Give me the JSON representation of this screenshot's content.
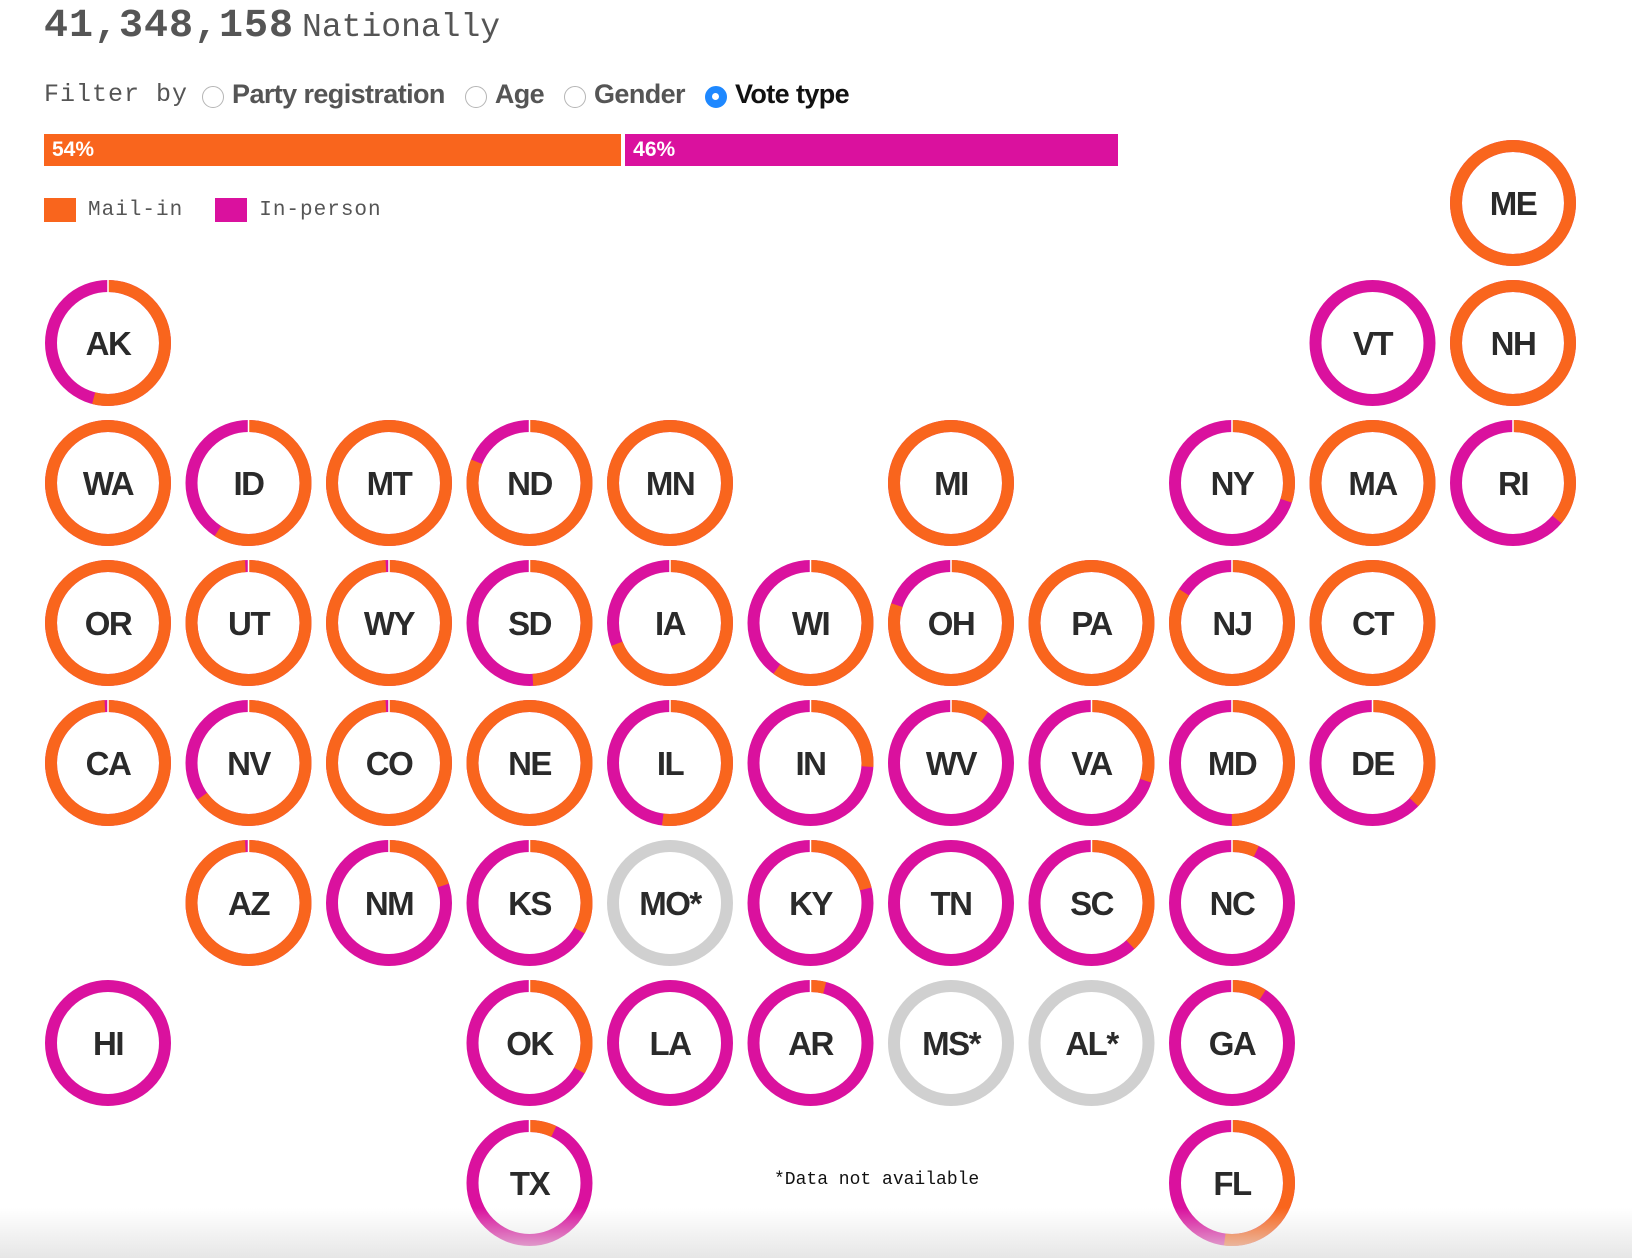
{
  "header": {
    "total": "41,348,158",
    "total_label": "Nationally"
  },
  "filter": {
    "label": "Filter by",
    "options": [
      {
        "label": "Party registration",
        "selected": false
      },
      {
        "label": "Age",
        "selected": false
      },
      {
        "label": "Gender",
        "selected": false
      },
      {
        "label": "Vote type",
        "selected": true
      }
    ]
  },
  "colors": {
    "mail_in": "#f9651d",
    "in_person": "#da119e",
    "unavailable": "#d0d0d0",
    "state_text": "#2a2a2a"
  },
  "national_bar": {
    "mail_in_pct": 54,
    "in_person_pct": 46,
    "mail_in_label": "54%",
    "in_person_label": "46%"
  },
  "legend": {
    "mail_in": "Mail-in",
    "in_person": "In-person"
  },
  "footnote": "*Data not available",
  "chart_data": {
    "type": "tile-map-donut",
    "series": [
      {
        "name": "Mail-in"
      },
      {
        "name": "In-person"
      }
    ],
    "states": [
      {
        "abbr": "ME",
        "col": 10,
        "row": 0,
        "mail_in": 1.0
      },
      {
        "abbr": "AK",
        "col": 0,
        "row": 1,
        "mail_in": 0.54
      },
      {
        "abbr": "VT",
        "col": 9,
        "row": 1,
        "mail_in": 0.0
      },
      {
        "abbr": "NH",
        "col": 10,
        "row": 1,
        "mail_in": 1.0
      },
      {
        "abbr": "WA",
        "col": 0,
        "row": 2,
        "mail_in": 1.0
      },
      {
        "abbr": "ID",
        "col": 1,
        "row": 2,
        "mail_in": 0.59
      },
      {
        "abbr": "MT",
        "col": 2,
        "row": 2,
        "mail_in": 1.0
      },
      {
        "abbr": "ND",
        "col": 3,
        "row": 2,
        "mail_in": 0.81
      },
      {
        "abbr": "MN",
        "col": 4,
        "row": 2,
        "mail_in": 1.0
      },
      {
        "abbr": "MI",
        "col": 6,
        "row": 2,
        "mail_in": 1.0
      },
      {
        "abbr": "NY",
        "col": 8,
        "row": 2,
        "mail_in": 0.3
      },
      {
        "abbr": "MA",
        "col": 9,
        "row": 2,
        "mail_in": 1.0
      },
      {
        "abbr": "RI",
        "col": 10,
        "row": 2,
        "mail_in": 0.36
      },
      {
        "abbr": "OR",
        "col": 0,
        "row": 3,
        "mail_in": 1.0
      },
      {
        "abbr": "UT",
        "col": 1,
        "row": 3,
        "mail_in": 0.99
      },
      {
        "abbr": "WY",
        "col": 2,
        "row": 3,
        "mail_in": 0.99
      },
      {
        "abbr": "SD",
        "col": 3,
        "row": 3,
        "mail_in": 0.49
      },
      {
        "abbr": "IA",
        "col": 4,
        "row": 3,
        "mail_in": 0.69
      },
      {
        "abbr": "WI",
        "col": 5,
        "row": 3,
        "mail_in": 0.6
      },
      {
        "abbr": "OH",
        "col": 6,
        "row": 3,
        "mail_in": 0.8
      },
      {
        "abbr": "PA",
        "col": 7,
        "row": 3,
        "mail_in": 1.0
      },
      {
        "abbr": "NJ",
        "col": 8,
        "row": 3,
        "mail_in": 0.84
      },
      {
        "abbr": "CT",
        "col": 9,
        "row": 3,
        "mail_in": 1.0
      },
      {
        "abbr": "CA",
        "col": 0,
        "row": 4,
        "mail_in": 0.99
      },
      {
        "abbr": "NV",
        "col": 1,
        "row": 4,
        "mail_in": 0.65
      },
      {
        "abbr": "CO",
        "col": 2,
        "row": 4,
        "mail_in": 0.99
      },
      {
        "abbr": "NE",
        "col": 3,
        "row": 4,
        "mail_in": 1.0
      },
      {
        "abbr": "IL",
        "col": 4,
        "row": 4,
        "mail_in": 0.52
      },
      {
        "abbr": "IN",
        "col": 5,
        "row": 4,
        "mail_in": 0.26
      },
      {
        "abbr": "WV",
        "col": 6,
        "row": 4,
        "mail_in": 0.1
      },
      {
        "abbr": "VA",
        "col": 7,
        "row": 4,
        "mail_in": 0.3
      },
      {
        "abbr": "MD",
        "col": 8,
        "row": 4,
        "mail_in": 0.5
      },
      {
        "abbr": "DE",
        "col": 9,
        "row": 4,
        "mail_in": 0.37
      },
      {
        "abbr": "AZ",
        "col": 1,
        "row": 5,
        "mail_in": 0.99
      },
      {
        "abbr": "NM",
        "col": 2,
        "row": 5,
        "mail_in": 0.2
      },
      {
        "abbr": "KS",
        "col": 3,
        "row": 5,
        "mail_in": 0.33
      },
      {
        "abbr": "MO*",
        "col": 4,
        "row": 5,
        "mail_in": null
      },
      {
        "abbr": "KY",
        "col": 5,
        "row": 5,
        "mail_in": 0.21
      },
      {
        "abbr": "TN",
        "col": 6,
        "row": 5,
        "mail_in": 0.0
      },
      {
        "abbr": "SC",
        "col": 7,
        "row": 5,
        "mail_in": 0.38
      },
      {
        "abbr": "NC",
        "col": 8,
        "row": 5,
        "mail_in": 0.07
      },
      {
        "abbr": "HI",
        "col": 0,
        "row": 6,
        "mail_in": 0.0
      },
      {
        "abbr": "OK",
        "col": 3,
        "row": 6,
        "mail_in": 0.33
      },
      {
        "abbr": "LA",
        "col": 4,
        "row": 6,
        "mail_in": 0.0
      },
      {
        "abbr": "AR",
        "col": 5,
        "row": 6,
        "mail_in": 0.04
      },
      {
        "abbr": "MS*",
        "col": 6,
        "row": 6,
        "mail_in": null
      },
      {
        "abbr": "AL*",
        "col": 7,
        "row": 6,
        "mail_in": null
      },
      {
        "abbr": "GA",
        "col": 8,
        "row": 6,
        "mail_in": 0.09
      },
      {
        "abbr": "TX",
        "col": 3,
        "row": 7,
        "mail_in": 0.07
      },
      {
        "abbr": "FL",
        "col": 8,
        "row": 7,
        "mail_in": 0.52
      }
    ]
  }
}
